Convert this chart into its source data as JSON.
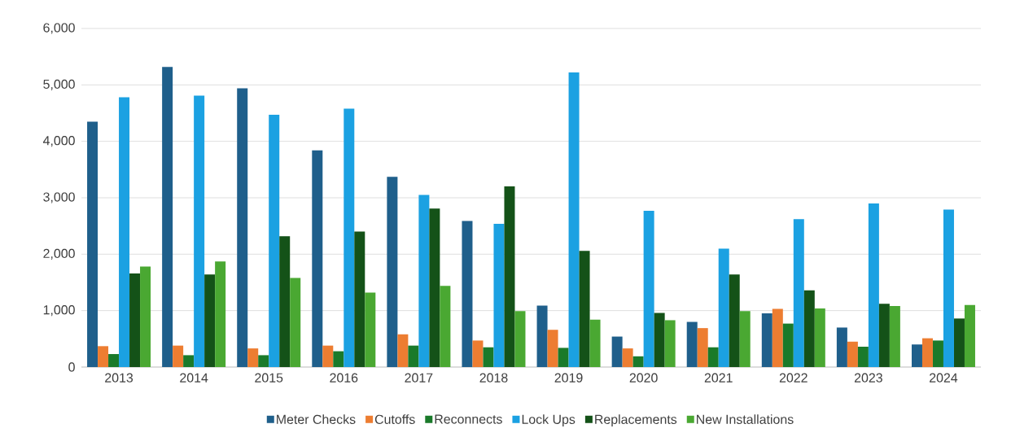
{
  "chart_data": {
    "type": "bar",
    "categories": [
      "2013",
      "2014",
      "2015",
      "2016",
      "2017",
      "2018",
      "2019",
      "2020",
      "2021",
      "2022",
      "2023",
      "2024"
    ],
    "series": [
      {
        "name": "Meter Checks",
        "color": "#1f5f8b",
        "values": [
          4350,
          5320,
          4940,
          3840,
          3370,
          2590,
          1090,
          540,
          800,
          950,
          700,
          400
        ]
      },
      {
        "name": "Cutoffs",
        "color": "#ed7d31",
        "values": [
          370,
          380,
          330,
          380,
          580,
          470,
          660,
          330,
          690,
          1030,
          450,
          510
        ]
      },
      {
        "name": "Reconnects",
        "color": "#1a7a2a",
        "values": [
          230,
          210,
          210,
          280,
          380,
          350,
          340,
          190,
          350,
          770,
          360,
          470
        ]
      },
      {
        "name": "Lock Ups",
        "color": "#1ba1e2",
        "values": [
          4780,
          4810,
          4470,
          4580,
          3050,
          2540,
          5220,
          2770,
          2100,
          2620,
          2900,
          2790
        ]
      },
      {
        "name": "Replacements",
        "color": "#145218",
        "values": [
          1660,
          1640,
          2320,
          2400,
          2810,
          3200,
          2060,
          960,
          1640,
          1360,
          1120,
          860
        ]
      },
      {
        "name": "New Installations",
        "color": "#4aa832",
        "values": [
          1780,
          1870,
          1580,
          1320,
          1440,
          990,
          840,
          830,
          990,
          1040,
          1080,
          1100
        ]
      }
    ],
    "ylim": [
      0,
      6000
    ],
    "yticks": [
      {
        "value": 0,
        "label": "0"
      },
      {
        "value": 1000,
        "label": "1,000"
      },
      {
        "value": 2000,
        "label": "2,000"
      },
      {
        "value": 3000,
        "label": "3,000"
      },
      {
        "value": 4000,
        "label": "4,000"
      },
      {
        "value": 5000,
        "label": "5,000"
      },
      {
        "value": 6000,
        "label": "6,000"
      }
    ],
    "grid": "y",
    "legend": "bottom"
  }
}
